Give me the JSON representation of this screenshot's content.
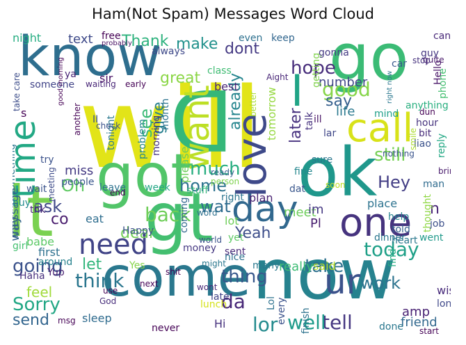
{
  "title": "Ham(Not Spam) Messages Word Cloud",
  "words": [
    {
      "t": "will",
      "c": "#e2e418"
    },
    {
      "t": "go",
      "c": "#3bbb75"
    },
    {
      "t": "know",
      "c": "#2e6e8e"
    },
    {
      "t": "got",
      "c": "#52c569"
    },
    {
      "t": "gt",
      "c": "#44bf70"
    },
    {
      "t": "lt",
      "c": "#7ad151"
    },
    {
      "t": "come",
      "c": "#2a788e"
    },
    {
      "t": "now",
      "c": "#26828e"
    },
    {
      "t": "ok",
      "c": "#1f978b"
    },
    {
      "t": "D",
      "c": "#35b779"
    },
    {
      "t": "call",
      "c": "#d8e219"
    },
    {
      "t": "love",
      "c": "#3e4989"
    },
    {
      "t": "time",
      "c": "#22a884"
    },
    {
      "t": "want",
      "c": "#bddf26"
    },
    {
      "t": "day",
      "c": "#31688e"
    },
    {
      "t": "one",
      "c": "#46337e"
    },
    {
      "t": "need",
      "c": "#414487"
    },
    {
      "t": "ur",
      "c": "#3b528b"
    },
    {
      "t": "I",
      "c": "#20a486"
    },
    {
      "t": "good",
      "c": "#86d549"
    },
    {
      "t": "hope",
      "c": "#472d7b"
    },
    {
      "t": "Thank",
      "c": "#2db27d"
    },
    {
      "t": "make",
      "c": "#21918c"
    },
    {
      "t": "home",
      "c": "#2c728e"
    },
    {
      "t": "still",
      "c": "#75d054"
    },
    {
      "t": "say",
      "c": "#355f8d"
    },
    {
      "t": "Hey",
      "c": "#433e85"
    },
    {
      "t": "back",
      "c": "#6ece58"
    },
    {
      "t": "much",
      "c": "#28ae80"
    },
    {
      "t": "see",
      "c": "#3aba76"
    },
    {
      "t": "wat",
      "c": "#2f6c8e"
    },
    {
      "t": "Oh",
      "c": "#5ec962"
    },
    {
      "t": "ask",
      "c": "#3f4788"
    },
    {
      "t": "dont",
      "c": "#443983"
    },
    {
      "t": "already",
      "c": "#25858e"
    },
    {
      "t": "give",
      "c": "#277f8e"
    },
    {
      "t": "Yeah",
      "c": "#3d4e8a"
    },
    {
      "t": "take",
      "c": "#2d708e"
    },
    {
      "t": "today",
      "c": "#1fa088"
    },
    {
      "t": "going",
      "c": "#3b528b"
    },
    {
      "t": "think",
      "c": "#2a768e"
    },
    {
      "t": "Sorry",
      "c": "#22a785"
    },
    {
      "t": "send",
      "c": "#32658e"
    },
    {
      "t": "work",
      "c": "#2c738e"
    },
    {
      "t": "tell",
      "c": "#453781"
    },
    {
      "t": "well",
      "c": "#1e9b8a"
    },
    {
      "t": "lor",
      "c": "#238a8d"
    },
    {
      "t": "thing",
      "c": "#38588c"
    },
    {
      "t": "dear",
      "c": "#73d056"
    },
    {
      "t": "let",
      "c": "#31b57b"
    },
    {
      "t": "later",
      "c": "#46307e"
    },
    {
      "t": "n",
      "c": "#482576"
    },
    {
      "t": "way",
      "c": "#34618d"
    },
    {
      "t": "da",
      "c": "#482878"
    },
    {
      "t": "life",
      "c": "#2a788e"
    },
    {
      "t": "feel",
      "c": "#a0da39"
    },
    {
      "t": "great",
      "c": "#8bd646"
    },
    {
      "t": "night",
      "c": "#26ad81"
    },
    {
      "t": "text",
      "c": "#3e4a89"
    },
    {
      "t": "miss",
      "c": "#443a83"
    },
    {
      "t": "meet",
      "c": "#6ccd5a"
    },
    {
      "t": "im",
      "c": "#453882"
    },
    {
      "t": "number",
      "c": "#404688"
    },
    {
      "t": "tomorrow",
      "c": "#95d840"
    },
    {
      "t": "something",
      "c": "#2b758e"
    },
    {
      "t": "please",
      "c": "#6ccd5a"
    },
    {
      "t": "really",
      "c": "#3dbc74"
    },
    {
      "t": "Hi",
      "c": "#46317e"
    },
    {
      "t": "friend",
      "c": "#31688e"
    },
    {
      "t": "Lol",
      "c": "#2c718e"
    },
    {
      "t": "message",
      "c": "#34608d"
    },
    {
      "t": "babe",
      "c": "#5ac864"
    },
    {
      "t": "co",
      "c": "#481b6d"
    },
    {
      "t": "said",
      "c": "#bade28"
    },
    {
      "t": "amp",
      "c": "#482173"
    },
    {
      "t": "mind",
      "c": "#1f9e89"
    },
    {
      "t": "sure",
      "c": "#2a778e"
    },
    {
      "t": "fine",
      "c": "#24878e"
    },
    {
      "t": "wait",
      "c": "#3a538b"
    },
    {
      "t": "leave",
      "c": "#2c728e"
    },
    {
      "t": "week",
      "c": "#21a685"
    },
    {
      "t": "place",
      "c": "#2c728e"
    },
    {
      "t": "soon",
      "c": "#c2df23"
    },
    {
      "t": "help",
      "c": "#25838e"
    },
    {
      "t": "told",
      "c": "#355e8d"
    },
    {
      "t": "Pl",
      "c": "#481d6f"
    },
    {
      "t": "thought",
      "c": "#8fd744"
    },
    {
      "t": "job",
      "c": "#3c4f8a"
    },
    {
      "t": "man",
      "c": "#2f6b8e"
    },
    {
      "t": "went",
      "c": "#1f998a"
    },
    {
      "t": "heart",
      "c": "#2a788e"
    },
    {
      "t": "dinner",
      "c": "#2a768e"
    },
    {
      "t": "find",
      "c": "#25ac82"
    },
    {
      "t": "yet",
      "c": "#5cc863"
    },
    {
      "t": "lot",
      "c": "#6ece58"
    },
    {
      "t": "sent",
      "c": "#482979"
    },
    {
      "t": "nice",
      "c": "#2c718e"
    },
    {
      "t": "many",
      "c": "#2a788e"
    },
    {
      "t": "money",
      "c": "#453882"
    },
    {
      "t": "plan",
      "c": "#482071"
    },
    {
      "t": "right",
      "c": "#2b748e"
    },
    {
      "t": "stuff",
      "c": "#34b679"
    },
    {
      "t": "coming",
      "c": "#31678e"
    },
    {
      "t": "Happy",
      "c": "#3b518b"
    },
    {
      "t": "eat",
      "c": "#2e6d8e"
    },
    {
      "t": "Yes",
      "c": "#86d549"
    },
    {
      "t": "first",
      "c": "#2d708e"
    },
    {
      "t": "around",
      "c": "#26818e"
    },
    {
      "t": "Haha",
      "c": "#472f7d"
    },
    {
      "t": "Yup",
      "c": "#481f70"
    },
    {
      "t": "girl",
      "c": "#44bf70"
    },
    {
      "t": "buy",
      "c": "#228b8d"
    },
    {
      "t": "thk",
      "c": "#482475"
    },
    {
      "t": "people",
      "c": "#39568c"
    },
    {
      "t": "meeting",
      "c": "#3e4c8a"
    },
    {
      "t": "try",
      "c": "#3b528b"
    },
    {
      "t": "sleep",
      "c": "#2f6b8e"
    },
    {
      "t": "lunch",
      "c": "#d5e21a"
    },
    {
      "t": "late",
      "c": "#414487"
    },
    {
      "t": "finish",
      "c": "#2c728e"
    },
    {
      "t": "never",
      "c": "#440154"
    },
    {
      "t": "wish",
      "c": "#472a7a"
    },
    {
      "t": "long",
      "c": "#3f4889"
    },
    {
      "t": "done",
      "c": "#2a778e"
    },
    {
      "t": "always",
      "c": "#3e4989"
    },
    {
      "t": "even",
      "c": "#2d708e"
    },
    {
      "t": "keep",
      "c": "#31668e"
    },
    {
      "t": "free",
      "c": "#440154"
    },
    {
      "t": "sir",
      "c": "#471063"
    },
    {
      "t": "best",
      "c": "#482576"
    },
    {
      "t": "class",
      "c": "#3fbc73"
    },
    {
      "t": "talk",
      "c": "#46327e"
    },
    {
      "t": "getting",
      "c": "#81d34d"
    },
    {
      "t": "gonna",
      "c": "#443983"
    },
    {
      "t": "guy",
      "c": "#453781"
    },
    {
      "t": "car",
      "c": "#38588c"
    },
    {
      "t": "cant",
      "c": "#482878"
    },
    {
      "t": "Hello",
      "c": "#481467"
    },
    {
      "t": "phone",
      "c": "#44bf70"
    },
    {
      "t": "anything",
      "c": "#29af7f"
    },
    {
      "t": "hour",
      "c": "#46337e"
    },
    {
      "t": "bit",
      "c": "#472c7a"
    },
    {
      "t": "liao",
      "c": "#3b528b"
    },
    {
      "t": "reply",
      "c": "#22a884"
    },
    {
      "t": "ill",
      "c": "#471365"
    },
    {
      "t": "lar",
      "c": "#3f4788"
    },
    {
      "t": "dat",
      "c": "#39568c"
    },
    {
      "t": "month",
      "c": "#2c738e"
    },
    {
      "t": "morning",
      "c": "#463480"
    },
    {
      "t": "problem",
      "c": "#24868e"
    },
    {
      "t": "tonight",
      "c": "#2a788e"
    },
    {
      "t": "someone",
      "c": "#404387"
    },
    {
      "t": "ya",
      "c": "#482475"
    },
    {
      "t": "take care",
      "c": "#3d4d8a"
    },
    {
      "t": "better",
      "c": "#aadc32"
    },
    {
      "t": "smile",
      "c": "#addc30"
    },
    {
      "t": "quite",
      "c": "#48186a"
    },
    {
      "t": "ready",
      "c": "#35608d"
    },
    {
      "t": "person",
      "c": "#7fd34e"
    },
    {
      "t": "nothing",
      "c": "#3a548c"
    },
    {
      "t": "bring",
      "c": "#481a6c"
    },
    {
      "t": "stop",
      "c": "#46327e"
    },
    {
      "t": "Aight",
      "c": "#482677"
    },
    {
      "t": "probably",
      "c": "#471063"
    },
    {
      "t": "good morning",
      "c": "#440154"
    },
    {
      "t": "waiting",
      "c": "#482677"
    },
    {
      "t": "early",
      "c": "#440154"
    },
    {
      "t": "right now",
      "c": "#2a778e"
    },
    {
      "t": "check",
      "c": "#3b528b"
    },
    {
      "t": "another",
      "c": "#440154"
    },
    {
      "t": "end",
      "c": "#440154"
    },
    {
      "t": "word",
      "c": "#2d708e"
    },
    {
      "t": "world",
      "c": "#3b528b"
    },
    {
      "t": "might",
      "c": "#2a788e"
    },
    {
      "t": "shit",
      "c": "#440154"
    },
    {
      "t": "next",
      "c": "#440154"
    },
    {
      "t": "use",
      "c": "#440154"
    },
    {
      "t": "wont",
      "c": "#482878"
    },
    {
      "t": "God",
      "c": "#472d7b"
    },
    {
      "t": "msg",
      "c": "#440154"
    },
    {
      "t": "start",
      "c": "#440154"
    },
    {
      "t": "every",
      "c": "#3b528b"
    },
    {
      "t": "dun",
      "c": "#440154"
    },
    {
      "t": "II",
      "c": "#3b528b"
    },
    {
      "t": "s",
      "c": "#440154"
    }
  ]
}
